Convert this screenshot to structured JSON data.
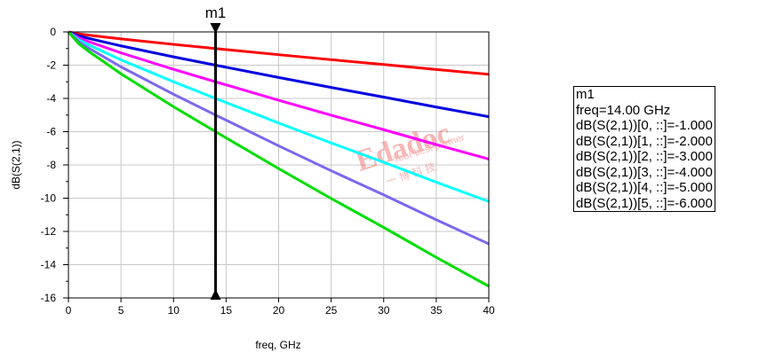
{
  "chart_data": {
    "type": "line",
    "title": "",
    "xlabel": "freq, GHz",
    "ylabel": "dB(S(2,1))",
    "xlim": [
      0,
      40
    ],
    "ylim": [
      -16,
      0
    ],
    "grid": true,
    "xticks": [
      "0",
      "5",
      "10",
      "15",
      "20",
      "25",
      "30",
      "35",
      "40"
    ],
    "yticks": [
      "0",
      "-2",
      "-4",
      "-6",
      "-8",
      "-10",
      "-12",
      "-14",
      "-16"
    ],
    "x": [
      0,
      1,
      2,
      5,
      10,
      14,
      20,
      25,
      30,
      35,
      40
    ],
    "series": [
      {
        "name": "dB(S(2,1))[0, ::]",
        "color": "#ff0000",
        "values": [
          0,
          -0.12,
          -0.2,
          -0.42,
          -0.75,
          -1.0,
          -1.37,
          -1.67,
          -1.96,
          -2.26,
          -2.55
        ]
      },
      {
        "name": "dB(S(2,1))[1, ::]",
        "color": "#0000e0",
        "values": [
          0,
          -0.24,
          -0.4,
          -0.84,
          -1.5,
          -2.0,
          -2.74,
          -3.34,
          -3.92,
          -4.52,
          -5.1
        ]
      },
      {
        "name": "dB(S(2,1))[2, ::]",
        "color": "#ff00ff",
        "values": [
          0,
          -0.36,
          -0.6,
          -1.26,
          -2.25,
          -3.0,
          -4.11,
          -5.01,
          -5.88,
          -6.78,
          -7.65
        ]
      },
      {
        "name": "dB(S(2,1))[3, ::]",
        "color": "#00ffff",
        "values": [
          0,
          -0.48,
          -0.8,
          -1.68,
          -3.0,
          -4.0,
          -5.48,
          -6.68,
          -7.84,
          -9.04,
          -10.2
        ]
      },
      {
        "name": "dB(S(2,1))[4, ::]",
        "color": "#7b68ee",
        "values": [
          0,
          -0.6,
          -1.0,
          -2.1,
          -3.75,
          -5.0,
          -6.85,
          -8.35,
          -9.8,
          -11.3,
          -12.75
        ]
      },
      {
        "name": "dB(S(2,1))[5, ::]",
        "color": "#00dd00",
        "values": [
          0,
          -0.72,
          -1.2,
          -2.52,
          -4.5,
          -6.0,
          -8.22,
          -10.02,
          -11.76,
          -13.56,
          -15.3
        ]
      }
    ],
    "marker": {
      "name": "m1",
      "freq": 14
    }
  },
  "marker_box": {
    "lines": [
      "m1",
      "freq=14.00 GHz",
      "dB(S(2,1))[0, ::]=-1.000",
      "dB(S(2,1))[1, ::]=-2.000",
      "dB(S(2,1))[2, ::]=-3.000",
      "dB(S(2,1))[3, ::]=-4.000",
      "dB(S(2,1))[4, ::]=-5.000",
      "dB(S(2,1))[5, ::]=-6.000"
    ]
  },
  "watermark": {
    "text": "Edadoc",
    "tagline": "Your best partner",
    "cn": "一 博 科 技"
  }
}
